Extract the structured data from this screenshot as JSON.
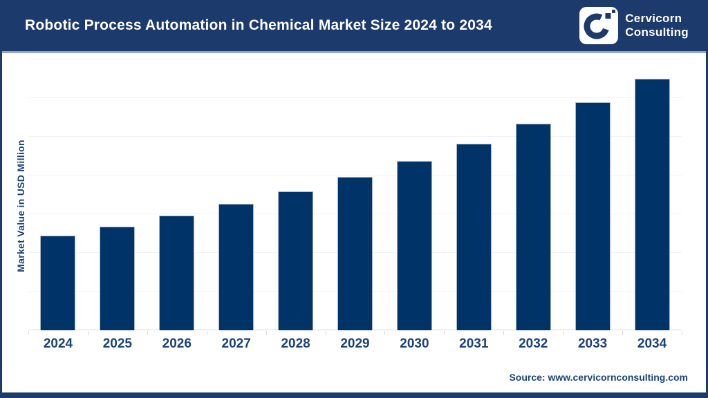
{
  "header": {
    "title": "Robotic Process Automation in Chemical Market Size 2024 to 2034",
    "logo": {
      "line1": "Cervicorn",
      "line2": "Consulting"
    }
  },
  "chart_data": {
    "type": "bar",
    "title": "Robotic Process Automation in Chemical Market Size 2024 to 2034",
    "categories": [
      "2024",
      "2025",
      "2026",
      "2027",
      "2028",
      "2029",
      "2030",
      "2031",
      "2032",
      "2033",
      "2034"
    ],
    "values": [
      245,
      268,
      296,
      327,
      359,
      397,
      437,
      483,
      534,
      589,
      650
    ],
    "xlabel": "",
    "ylabel": "Market Value in USD Million",
    "ylim": [
      0,
      700
    ],
    "gridline_step": 100,
    "grid": "horizontal-light",
    "y_tick_labels_visible": false,
    "value_labels_visible": false,
    "legend": "none"
  },
  "footer": {
    "source": "Source: www.cervicornconsulting.com"
  },
  "colors": {
    "navy": "#1c3a6b",
    "bar": "#003468",
    "bar_edge": "#a9b6cc",
    "text_navy": "#1b4278",
    "gridline": "#f2f2f2",
    "axis": "#d9d9d9",
    "white": "#ffffff"
  }
}
